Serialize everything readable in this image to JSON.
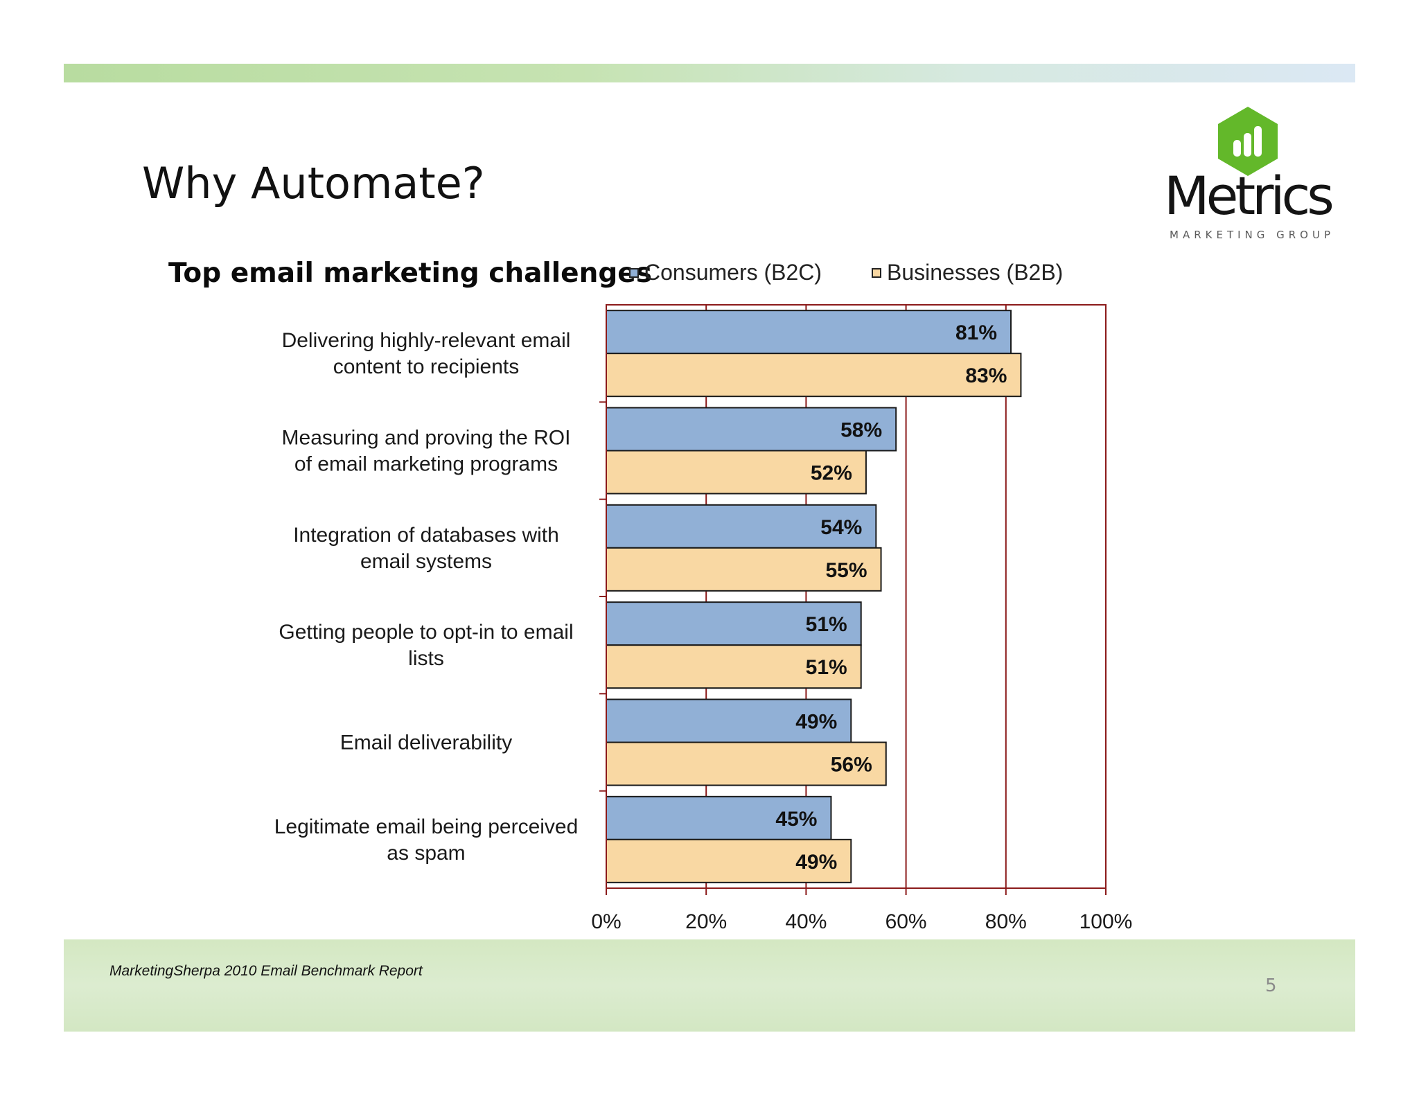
{
  "slide": {
    "title": "Why Automate?",
    "page_number": "5",
    "source": "MarketingSherpa 2010 Email Benchmark Report"
  },
  "logo": {
    "word": "Metrics",
    "tagline": "MARKETING GROUP",
    "colors": {
      "mark": "#63b82a",
      "text": "#141414"
    }
  },
  "colors": {
    "top_band": "#c6e3b2",
    "footer_band": "#d6e9c6",
    "axis_frame": "#8b1a1a"
  },
  "chart_data": {
    "type": "bar",
    "orientation": "horizontal",
    "title": "Top email marketing challenges",
    "categories": [
      [
        "Delivering highly-relevant email",
        "content to recipients"
      ],
      [
        "Measuring and proving the ROI",
        "of email marketing programs"
      ],
      [
        "Integration of databases with",
        "email systems"
      ],
      [
        "Getting people to opt-in to email",
        "lists"
      ],
      [
        "Email deliverability"
      ],
      [
        "Legitimate email being perceived",
        "as spam"
      ]
    ],
    "series": [
      {
        "name": "Consumers (B2C)",
        "color": "#91b0d6",
        "values": [
          81,
          58,
          54,
          51,
          49,
          45
        ]
      },
      {
        "name": "Businesses (B2B)",
        "color": "#f9d8a3",
        "values": [
          83,
          52,
          55,
          51,
          56,
          49
        ]
      }
    ],
    "value_suffix": "%",
    "xlim": [
      0,
      100
    ],
    "xticks": [
      0,
      20,
      40,
      60,
      80,
      100
    ],
    "xtick_labels": [
      "0%",
      "20%",
      "40%",
      "60%",
      "80%",
      "100%"
    ],
    "grid": true,
    "legend_position": "top"
  }
}
